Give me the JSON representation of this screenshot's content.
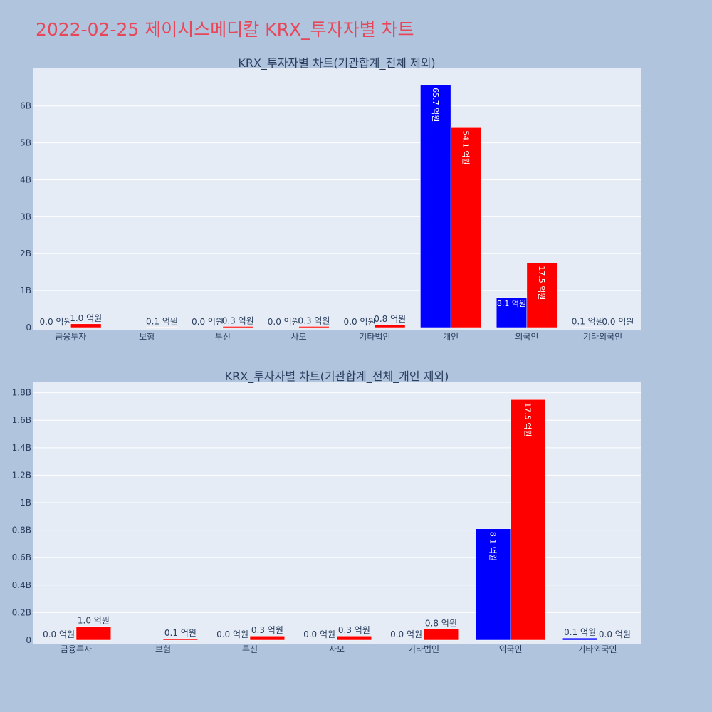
{
  "page_title": "2022-02-25 제이시스메디칼 KRX_투자자별 차트",
  "colors": {
    "buy": "#0000ff",
    "sell": "#ff0000",
    "plot_bg": "#e5ecf6",
    "paper_bg": "#b0c4de",
    "title": "#e8475a"
  },
  "chart_data": [
    {
      "type": "bar",
      "title": "KRX_투자자별 차트(기관합계_전체 제외)",
      "categories": [
        "금융투자",
        "보험",
        "투신",
        "사모",
        "기타법인",
        "개인",
        "외국인",
        "기타외국인"
      ],
      "series": [
        {
          "values": [
            0.0,
            0.0,
            0.0,
            0.0,
            0.0,
            6.57,
            0.81,
            0.01
          ],
          "labels": [
            "0.0 억원",
            "",
            "0.0 억원",
            "0.0 억원",
            "0.0 억원",
            "65.7 억원",
            "8.1 억원",
            "0.1 억원"
          ]
        },
        {
          "values": [
            0.1,
            0.01,
            0.03,
            0.03,
            0.08,
            5.41,
            1.75,
            0.0
          ],
          "labels": [
            "1.0 억원",
            "0.1 억원",
            "0.3 억원",
            "0.3 억원",
            "0.8 억원",
            "54.1 억원",
            "17.5 억원",
            "0.0 억원"
          ]
        }
      ],
      "ylim": [
        0,
        6.9
      ],
      "yticks": [
        0,
        1,
        2,
        3,
        4,
        5,
        6
      ],
      "ytick_labels": [
        "0",
        "1B",
        "2B",
        "3B",
        "4B",
        "5B",
        "6B"
      ],
      "grid": true,
      "xlabel": "",
      "ylabel": ""
    },
    {
      "type": "bar",
      "title": "KRX_투자자별 차트(기관합계_전체_개인 제외)",
      "categories": [
        "금융투자",
        "보험",
        "투신",
        "사모",
        "기타법인",
        "외국인",
        "기타외국인"
      ],
      "series": [
        {
          "values": [
            0.0,
            0.0,
            0.0,
            0.0,
            0.0,
            0.81,
            0.015
          ],
          "labels": [
            "0.0 억원",
            "",
            "0.0 억원",
            "0.0 억원",
            "0.0 억원",
            "8.1 억원",
            "0.1 억원"
          ]
        },
        {
          "values": [
            0.1,
            0.01,
            0.03,
            0.03,
            0.08,
            1.75,
            0.0
          ],
          "labels": [
            "1.0 억원",
            "0.1 억원",
            "0.3 억원",
            "0.3 억원",
            "0.8 억원",
            "17.5 억원",
            "0.0 억원"
          ]
        }
      ],
      "ylim": [
        0,
        1.85
      ],
      "yticks": [
        0,
        0.2,
        0.4,
        0.6,
        0.8,
        1.0,
        1.2,
        1.4,
        1.6,
        1.8
      ],
      "ytick_labels": [
        "0",
        "0.2B",
        "0.4B",
        "0.6B",
        "0.8B",
        "1B",
        "1.2B",
        "1.4B",
        "1.6B",
        "1.8B"
      ],
      "grid": true,
      "xlabel": "",
      "ylabel": ""
    }
  ]
}
